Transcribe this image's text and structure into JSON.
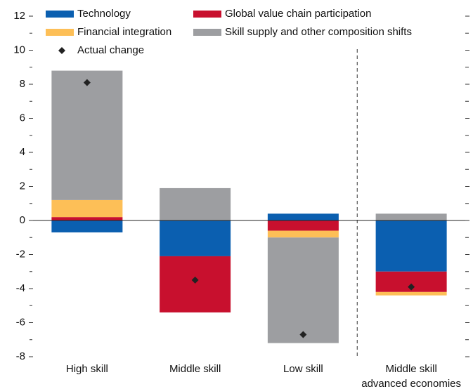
{
  "chart_data": {
    "type": "stacked-bar",
    "categories": [
      "High skill",
      "Middle skill",
      "Low skill",
      "Middle skill\nadvanced economies"
    ],
    "series": [
      {
        "name": "Technology",
        "color": "#0b5fb0",
        "values": [
          -0.7,
          -2.1,
          0.4,
          -3.0
        ]
      },
      {
        "name": "Global value chain participation",
        "color": "#c8102e",
        "values": [
          0.2,
          -3.3,
          -0.6,
          -1.2
        ]
      },
      {
        "name": "Financial integration",
        "color": "#fdbf57",
        "values": [
          1.0,
          0,
          -0.4,
          -0.2
        ]
      },
      {
        "name": "Skill supply and other composition shifts",
        "color": "#9d9ea1",
        "values": [
          7.6,
          1.9,
          -6.2,
          0.4
        ]
      }
    ],
    "points": {
      "name": "Actual change",
      "color": "#222222",
      "values": [
        8.1,
        -3.5,
        -6.7,
        -3.9
      ]
    },
    "ylim": [
      -8,
      12
    ],
    "yticks": [
      -8,
      -6,
      -4,
      -2,
      0,
      2,
      4,
      6,
      8,
      10,
      12
    ],
    "yticks_minor": [
      -7,
      -5,
      -3,
      -1,
      1,
      3,
      5,
      7,
      9,
      11
    ]
  }
}
